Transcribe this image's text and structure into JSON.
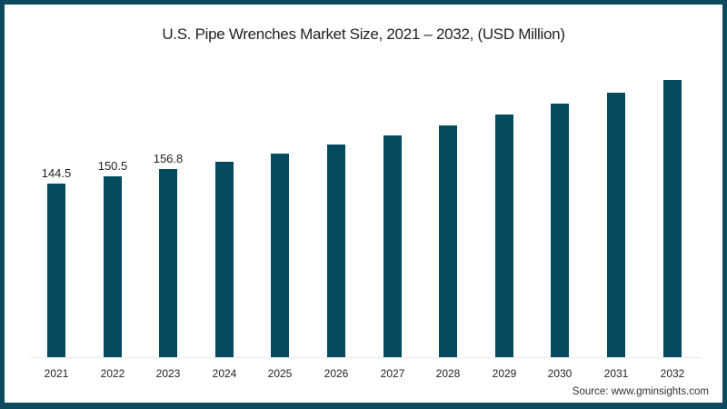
{
  "chart": {
    "title": "U.S. Pipe Wrenches Market Size, 2021 – 2032, (USD Million)",
    "source": "Source: www.gminsights.com",
    "bar_color": "#064a60",
    "border_color": "#0d4a5e"
  },
  "chart_data": {
    "type": "bar",
    "title": "U.S. Pipe Wrenches Market Size, 2021 – 2032, (USD Million)",
    "xlabel": "",
    "ylabel": "USD Million",
    "categories": [
      "2021",
      "2022",
      "2023",
      "2024",
      "2025",
      "2026",
      "2027",
      "2028",
      "2029",
      "2030",
      "2031",
      "2032"
    ],
    "values": [
      144.5,
      150.5,
      156.8,
      162.7,
      169.5,
      177.0,
      184.6,
      192.9,
      202.0,
      211.0,
      220.0,
      230.7
    ],
    "labeled_values": {
      "2021": "144.5",
      "2022": "150.5",
      "2023": "156.8"
    },
    "grid": false,
    "legend": null,
    "annotations": [
      "Source: www.gminsights.com"
    ]
  }
}
